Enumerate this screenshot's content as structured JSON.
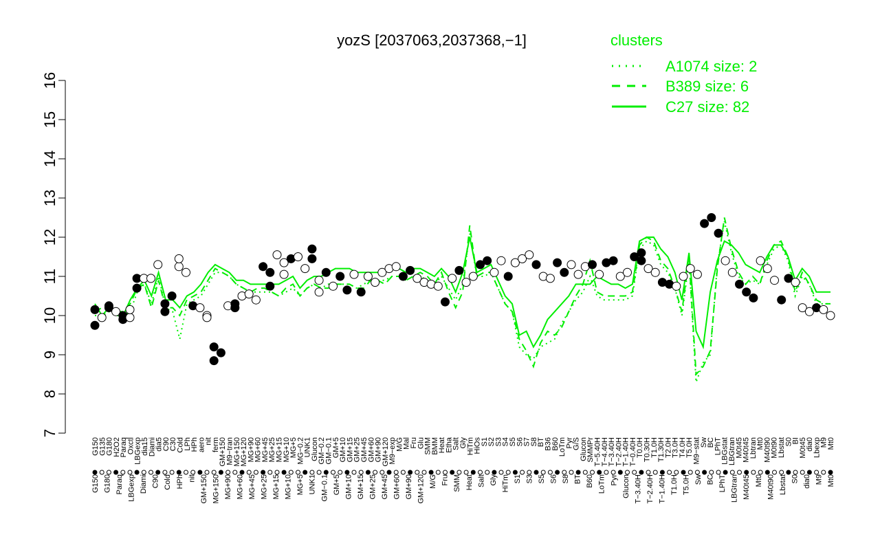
{
  "chart_data": {
    "type": "line",
    "title": "yozS [2037063,2037368,−1]",
    "xlabel": "",
    "ylabel": "",
    "ylim": [
      7,
      16
    ],
    "yticks": [
      7,
      8,
      9,
      10,
      11,
      12,
      13,
      14,
      15,
      16
    ],
    "grid": false,
    "legend": {
      "title": "clusters",
      "placement": "top-right",
      "color": "#00ee00",
      "entries": [
        {
          "label": "A1074 size: 2",
          "style": "dotted"
        },
        {
          "label": "B389 size: 6",
          "style": "dashed"
        },
        {
          "label": "C27 size: 82",
          "style": "solid"
        }
      ]
    },
    "colors": {
      "line": "#00ee00",
      "point_open": "#ffffff",
      "point_filled": "#000000",
      "axis": "#000000"
    },
    "x_tick_labels_top": [
      "G150",
      "G135",
      "G180",
      "H2O2",
      "Paraq",
      "Oxctl",
      "LBGexp",
      "dia15",
      "Diami",
      "dia5",
      "C90",
      "C30",
      "Cold",
      "LPh",
      "HPh",
      "aero",
      "nit",
      "ferm",
      "GM+150",
      "M9−tran",
      "MG+150",
      "MG+120",
      "MG+90",
      "MG+60",
      "MG+45",
      "MG+25",
      "MG+15",
      "MG+10",
      "MG+5",
      "MG−0.2",
      "UNK1",
      "Glucon",
      "GM−0.2",
      "GM−0.1",
      "GM+5",
      "GM+10",
      "GM+15",
      "GM+25",
      "GM+45",
      "GM+60",
      "GM+90",
      "GM+120",
      "M9−exp",
      "M/G",
      "Mal",
      "Fru",
      "Glu",
      "SMM",
      "BMM",
      "Heat",
      "Etha",
      "Salt",
      "Gly",
      "HiTm",
      "HiOs",
      "S1",
      "S2",
      "S3",
      "S4",
      "S5",
      "S6",
      "S7",
      "S8",
      "BT",
      "B36",
      "B60",
      "LoTm",
      "Pyr",
      "G/S",
      "Glucon",
      "SMMPr",
      "T−5.40H",
      "T−4.40H",
      "T−3.40H",
      "T−2.40H",
      "T−1.40H",
      "T−0.40H",
      "T0.0H",
      "T0.30H",
      "T1.0H",
      "T1.30H",
      "T2.0H",
      "T3.0H",
      "T4.0H",
      "T5.0H",
      "M9−stat",
      "Sw",
      "BC",
      "LPhT",
      "LBGstat",
      "LBGtran",
      "M0t45",
      "M40t45",
      "Lbtran",
      "Mt0",
      "M40t90",
      "M0t90",
      "Lbstat",
      "S0",
      "BI",
      "M0t45",
      "dia0",
      "Lbexp",
      "M9",
      "Mt0"
    ],
    "x_tick_labels_bottom": [
      "G150",
      "G180",
      "Paraq",
      "LBGexp",
      "Diami",
      "C90",
      "Cold",
      "HPh",
      "nit",
      "GM+150",
      "MG+150",
      "MG+90",
      "MG+60",
      "MG+45",
      "MG+25",
      "MG+15",
      "MG+10",
      "MG+5",
      "UNK1",
      "GM−0.1",
      "GM+5",
      "GM+10",
      "GM+15",
      "GM+25",
      "GM+45",
      "GM+60",
      "GM+90",
      "GM+120",
      "M/G",
      "Fru",
      "SMM",
      "Heat",
      "Salt",
      "Gly",
      "HiTm",
      "S1",
      "S3",
      "S5",
      "S6",
      "S8",
      "BT",
      "B60",
      "LoTm",
      "Pyr",
      "Glucon",
      "T−3.40H",
      "T−2.40H",
      "T−1.40H",
      "T1.0H",
      "T5.0H",
      "Sw",
      "BC",
      "LPhT",
      "LBGtran",
      "M40t45",
      "Mt0",
      "M40t90",
      "Lbstat",
      "S0",
      "dia0",
      "M9",
      "Mt0"
    ],
    "series": [
      {
        "name": "C27 size: 82",
        "style": "solid",
        "values": [
          10.3,
          10.0,
          10.2,
          10.1,
          10.0,
          10.4,
          10.7,
          10.9,
          10.5,
          11.1,
          10.4,
          10.4,
          10.2,
          10.5,
          10.6,
          10.8,
          11.1,
          11.3,
          11.2,
          11.1,
          10.9,
          10.9,
          10.8,
          10.8,
          10.8,
          10.8,
          10.8,
          10.9,
          11.0,
          10.7,
          10.9,
          11.0,
          11.0,
          11.1,
          11.2,
          11.2,
          11.2,
          11.1,
          11.1,
          11.1,
          11.1,
          11.1,
          11.2,
          11.2,
          11.1,
          11.2,
          11.2,
          11.1,
          11.0,
          11.2,
          11.0,
          10.6,
          11.1,
          12.0,
          11.1,
          11.2,
          11.3,
          10.9,
          10.5,
          10.3,
          9.5,
          9.6,
          9.2,
          9.5,
          9.9,
          10.1,
          10.3,
          10.5,
          10.8,
          10.8,
          10.8,
          11.0,
          10.9,
          10.8,
          10.8,
          10.7,
          10.8,
          11.9,
          12.0,
          12.0,
          11.7,
          11.5,
          11.1,
          10.4,
          11.6,
          9.6,
          9.2,
          10.6,
          11.4,
          11.9,
          11.8,
          11.6,
          11.3,
          11.2,
          11.1,
          11.5,
          11.8,
          11.8,
          11.5,
          10.9,
          11.2,
          11.0,
          10.6,
          10.6,
          10.6
        ]
      },
      {
        "name": "B389 size: 6",
        "style": "dashed",
        "values": [
          10.1,
          10.2,
          10.2,
          10.1,
          10.1,
          10.3,
          10.7,
          10.8,
          10.2,
          10.9,
          10.2,
          10.2,
          10.0,
          10.4,
          10.5,
          10.6,
          10.9,
          11.2,
          11.1,
          11.0,
          10.8,
          10.7,
          10.6,
          10.7,
          10.7,
          10.6,
          10.5,
          10.7,
          10.8,
          10.5,
          10.7,
          10.8,
          10.7,
          10.7,
          10.8,
          10.8,
          10.8,
          10.7,
          10.7,
          10.9,
          10.9,
          10.8,
          11.0,
          11.0,
          10.9,
          11.0,
          11.1,
          11.0,
          10.8,
          11.1,
          10.6,
          10.2,
          10.6,
          12.3,
          11.0,
          11.1,
          11.1,
          10.7,
          10.3,
          10.1,
          9.4,
          9.1,
          8.7,
          9.3,
          9.6,
          9.5,
          9.7,
          10.1,
          10.5,
          10.8,
          11.4,
          10.6,
          10.5,
          10.5,
          10.5,
          10.5,
          10.6,
          11.8,
          12.0,
          11.9,
          11.4,
          11.2,
          10.7,
          10.1,
          11.5,
          8.5,
          8.7,
          9.1,
          11.2,
          12.5,
          11.7,
          11.1,
          10.8,
          11.0,
          10.8,
          11.4,
          11.8,
          11.9,
          11.5,
          10.6,
          11.1,
          10.8,
          10.4,
          10.3,
          10.3
        ]
      },
      {
        "name": "A1074 size: 2",
        "style": "dotted",
        "values": [
          10.0,
          10.0,
          10.1,
          10.0,
          10.0,
          10.1,
          10.6,
          10.8,
          10.3,
          11.0,
          10.2,
          10.1,
          9.4,
          10.3,
          10.4,
          10.5,
          10.8,
          11.1,
          11.1,
          11.0,
          10.8,
          10.7,
          10.6,
          10.6,
          10.6,
          10.6,
          10.5,
          10.6,
          10.7,
          10.5,
          10.7,
          10.8,
          10.7,
          10.8,
          10.8,
          10.8,
          10.8,
          10.7,
          10.8,
          10.9,
          10.9,
          10.9,
          11.0,
          11.0,
          10.9,
          11.0,
          11.0,
          10.9,
          10.8,
          11.0,
          10.7,
          10.4,
          10.8,
          12.1,
          11.0,
          11.0,
          11.1,
          10.7,
          10.3,
          10.1,
          9.2,
          9.0,
          8.9,
          9.2,
          9.3,
          9.4,
          9.8,
          10.1,
          10.4,
          10.6,
          11.0,
          10.5,
          10.4,
          10.4,
          10.4,
          10.4,
          10.5,
          11.7,
          11.9,
          11.8,
          11.3,
          11.1,
          10.7,
          10.0,
          11.4,
          8.3,
          8.8,
          9.0,
          11.3,
          12.4,
          11.6,
          11.0,
          10.8,
          10.9,
          10.8,
          11.3,
          11.7,
          11.8,
          11.4,
          10.5,
          11.0,
          10.8,
          10.3,
          10.3,
          10.3
        ]
      }
    ],
    "points": [
      {
        "x": 0,
        "y": 10.15,
        "filled": true
      },
      {
        "x": 0,
        "y": 9.75,
        "filled": true
      },
      {
        "x": 1,
        "y": 9.95,
        "filled": false
      },
      {
        "x": 2,
        "y": 10.2,
        "filled": true
      },
      {
        "x": 2,
        "y": 10.25,
        "filled": true
      },
      {
        "x": 3,
        "y": 10.1,
        "filled": false
      },
      {
        "x": 4,
        "y": 10.0,
        "filled": true
      },
      {
        "x": 4,
        "y": 9.9,
        "filled": true
      },
      {
        "x": 5,
        "y": 9.95,
        "filled": false
      },
      {
        "x": 5,
        "y": 10.15,
        "filled": false
      },
      {
        "x": 6,
        "y": 10.95,
        "filled": true
      },
      {
        "x": 6,
        "y": 10.7,
        "filled": true
      },
      {
        "x": 7,
        "y": 10.95,
        "filled": false
      },
      {
        "x": 8,
        "y": 10.95,
        "filled": false
      },
      {
        "x": 9,
        "y": 11.3,
        "filled": false
      },
      {
        "x": 10,
        "y": 10.3,
        "filled": true
      },
      {
        "x": 10,
        "y": 10.1,
        "filled": true
      },
      {
        "x": 11,
        "y": 10.5,
        "filled": true
      },
      {
        "x": 12,
        "y": 11.25,
        "filled": false
      },
      {
        "x": 12,
        "y": 11.45,
        "filled": false
      },
      {
        "x": 13,
        "y": 11.1,
        "filled": false
      },
      {
        "x": 14,
        "y": 10.25,
        "filled": true
      },
      {
        "x": 15,
        "y": 10.2,
        "filled": false
      },
      {
        "x": 16,
        "y": 10.0,
        "filled": false
      },
      {
        "x": 16,
        "y": 9.95,
        "filled": false
      },
      {
        "x": 17,
        "y": 9.2,
        "filled": true
      },
      {
        "x": 17,
        "y": 8.85,
        "filled": true
      },
      {
        "x": 18,
        "y": 9.05,
        "filled": true
      },
      {
        "x": 19,
        "y": 10.25,
        "filled": false
      },
      {
        "x": 20,
        "y": 10.3,
        "filled": true
      },
      {
        "x": 20,
        "y": 10.2,
        "filled": true
      },
      {
        "x": 21,
        "y": 10.5,
        "filled": false
      },
      {
        "x": 22,
        "y": 10.55,
        "filled": false
      },
      {
        "x": 23,
        "y": 10.4,
        "filled": false
      },
      {
        "x": 24,
        "y": 11.25,
        "filled": true
      },
      {
        "x": 25,
        "y": 11.1,
        "filled": true
      },
      {
        "x": 25,
        "y": 10.75,
        "filled": true
      },
      {
        "x": 26,
        "y": 11.55,
        "filled": false
      },
      {
        "x": 27,
        "y": 11.35,
        "filled": false
      },
      {
        "x": 27,
        "y": 11.05,
        "filled": false
      },
      {
        "x": 28,
        "y": 11.45,
        "filled": true
      },
      {
        "x": 29,
        "y": 11.5,
        "filled": false
      },
      {
        "x": 30,
        "y": 11.2,
        "filled": false
      },
      {
        "x": 31,
        "y": 11.45,
        "filled": true
      },
      {
        "x": 31,
        "y": 11.7,
        "filled": true
      },
      {
        "x": 32,
        "y": 10.6,
        "filled": false
      },
      {
        "x": 32,
        "y": 10.9,
        "filled": false
      },
      {
        "x": 33,
        "y": 11.1,
        "filled": true
      },
      {
        "x": 34,
        "y": 10.75,
        "filled": false
      },
      {
        "x": 35,
        "y": 11.0,
        "filled": true
      },
      {
        "x": 36,
        "y": 10.65,
        "filled": true
      },
      {
        "x": 37,
        "y": 11.05,
        "filled": false
      },
      {
        "x": 38,
        "y": 10.6,
        "filled": true
      },
      {
        "x": 39,
        "y": 11.0,
        "filled": false
      },
      {
        "x": 40,
        "y": 10.85,
        "filled": false
      },
      {
        "x": 41,
        "y": 11.1,
        "filled": false
      },
      {
        "x": 42,
        "y": 11.2,
        "filled": false
      },
      {
        "x": 43,
        "y": 11.25,
        "filled": false
      },
      {
        "x": 44,
        "y": 11.0,
        "filled": true
      },
      {
        "x": 45,
        "y": 11.15,
        "filled": true
      },
      {
        "x": 46,
        "y": 10.95,
        "filled": false
      },
      {
        "x": 47,
        "y": 10.85,
        "filled": false
      },
      {
        "x": 48,
        "y": 10.8,
        "filled": false
      },
      {
        "x": 49,
        "y": 10.75,
        "filled": false
      },
      {
        "x": 50,
        "y": 10.35,
        "filled": true
      },
      {
        "x": 51,
        "y": 10.95,
        "filled": false
      },
      {
        "x": 52,
        "y": 11.15,
        "filled": true
      },
      {
        "x": 53,
        "y": 10.85,
        "filled": false
      },
      {
        "x": 54,
        "y": 11.0,
        "filled": false
      },
      {
        "x": 55,
        "y": 11.3,
        "filled": true
      },
      {
        "x": 56,
        "y": 11.4,
        "filled": true
      },
      {
        "x": 57,
        "y": 11.1,
        "filled": false
      },
      {
        "x": 58,
        "y": 11.4,
        "filled": false
      },
      {
        "x": 59,
        "y": 11.0,
        "filled": true
      },
      {
        "x": 60,
        "y": 11.35,
        "filled": false
      },
      {
        "x": 61,
        "y": 11.45,
        "filled": false
      },
      {
        "x": 62,
        "y": 11.55,
        "filled": false
      },
      {
        "x": 63,
        "y": 11.3,
        "filled": true
      },
      {
        "x": 64,
        "y": 11.0,
        "filled": false
      },
      {
        "x": 65,
        "y": 10.95,
        "filled": false
      },
      {
        "x": 66,
        "y": 11.35,
        "filled": true
      },
      {
        "x": 67,
        "y": 11.1,
        "filled": true
      },
      {
        "x": 68,
        "y": 11.3,
        "filled": false
      },
      {
        "x": 69,
        "y": 11.05,
        "filled": false
      },
      {
        "x": 70,
        "y": 11.25,
        "filled": false
      },
      {
        "x": 71,
        "y": 11.3,
        "filled": true
      },
      {
        "x": 72,
        "y": 11.05,
        "filled": false
      },
      {
        "x": 73,
        "y": 11.35,
        "filled": true
      },
      {
        "x": 74,
        "y": 11.4,
        "filled": true
      },
      {
        "x": 75,
        "y": 11.0,
        "filled": false
      },
      {
        "x": 76,
        "y": 11.1,
        "filled": false
      },
      {
        "x": 77,
        "y": 11.5,
        "filled": true
      },
      {
        "x": 78,
        "y": 11.6,
        "filled": true
      },
      {
        "x": 78,
        "y": 11.4,
        "filled": true
      },
      {
        "x": 79,
        "y": 11.2,
        "filled": false
      },
      {
        "x": 80,
        "y": 11.1,
        "filled": false
      },
      {
        "x": 81,
        "y": 10.85,
        "filled": true
      },
      {
        "x": 82,
        "y": 10.8,
        "filled": true
      },
      {
        "x": 83,
        "y": 10.75,
        "filled": false
      },
      {
        "x": 84,
        "y": 11.0,
        "filled": false
      },
      {
        "x": 85,
        "y": 11.2,
        "filled": false
      },
      {
        "x": 86,
        "y": 11.05,
        "filled": false
      },
      {
        "x": 87,
        "y": 12.35,
        "filled": true
      },
      {
        "x": 88,
        "y": 12.5,
        "filled": true
      },
      {
        "x": 89,
        "y": 12.1,
        "filled": true
      },
      {
        "x": 90,
        "y": 11.4,
        "filled": false
      },
      {
        "x": 91,
        "y": 11.1,
        "filled": false
      },
      {
        "x": 92,
        "y": 10.8,
        "filled": true
      },
      {
        "x": 93,
        "y": 10.6,
        "filled": true
      },
      {
        "x": 94,
        "y": 10.45,
        "filled": true
      },
      {
        "x": 95,
        "y": 11.4,
        "filled": false
      },
      {
        "x": 96,
        "y": 11.2,
        "filled": false
      },
      {
        "x": 97,
        "y": 10.9,
        "filled": false
      },
      {
        "x": 98,
        "y": 10.4,
        "filled": true
      },
      {
        "x": 99,
        "y": 10.95,
        "filled": true
      },
      {
        "x": 100,
        "y": 10.85,
        "filled": false
      },
      {
        "x": 101,
        "y": 10.2,
        "filled": false
      },
      {
        "x": 102,
        "y": 10.1,
        "filled": false
      },
      {
        "x": 103,
        "y": 10.2,
        "filled": true
      },
      {
        "x": 104,
        "y": 10.15,
        "filled": false
      },
      {
        "x": 105,
        "y": 10.0,
        "filled": false
      }
    ]
  }
}
